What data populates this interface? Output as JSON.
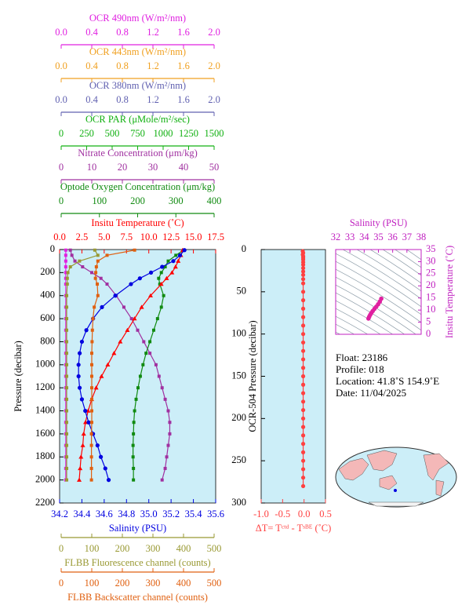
{
  "chart_data": [
    {
      "type": "profile",
      "ylabel": "Pressure (decibar)",
      "ylim": [
        0,
        2200
      ],
      "yinvert": true,
      "yticks": [
        0,
        200,
        400,
        600,
        800,
        1000,
        1200,
        1400,
        1600,
        1800,
        2000,
        2200
      ],
      "background": "#cceef8",
      "pressure": [
        5,
        50,
        100,
        150,
        200,
        250,
        300,
        400,
        500,
        600,
        700,
        800,
        900,
        1000,
        1100,
        1200,
        1300,
        1400,
        1500,
        1600,
        1700,
        1800,
        1900,
        2000
      ],
      "axes": [
        {
          "label": "OCR 490nm (W/m²/nm)",
          "color": "#e020e0",
          "side": "top",
          "marker": "square",
          "xlim": [
            0,
            2
          ],
          "xticks": [
            {
              "value": 0,
              "label": "0.0"
            },
            0.4,
            0.8,
            1.2,
            1.6,
            {
              "value": 2,
              "label": "2.0"
            }
          ],
          "values": [
            0.06,
            0.06,
            0.06,
            0.06,
            0.06,
            0.06,
            0.06,
            0.06,
            0.06,
            0.06,
            0.06,
            0.06,
            0.06,
            0.06,
            0.06,
            0.06,
            0.06,
            0.06,
            0.06,
            0.06,
            0.06,
            0.06,
            0.06,
            0.06
          ]
        },
        {
          "label": "OCR 443nm (W/m²/nm)",
          "color": "#f0a020",
          "side": "top",
          "xlim": [
            0,
            2
          ],
          "xticks": [
            {
              "value": 0,
              "label": "0.0"
            },
            0.4,
            0.8,
            1.2,
            1.6,
            {
              "value": 2,
              "label": "2.0"
            }
          ]
        },
        {
          "label": "OCR 380nm (W/m²/nm)",
          "color": "#6060b0",
          "side": "top",
          "xlim": [
            0,
            2
          ],
          "xticks": [
            {
              "value": 0,
              "label": "0.0"
            },
            0.4,
            0.8,
            1.2,
            1.6,
            {
              "value": 2,
              "label": "2.0"
            }
          ]
        },
        {
          "label": "OCR PAR (μMole/m²/sec)",
          "color": "#10b010",
          "side": "top",
          "xlim": [
            0,
            1500
          ],
          "xticks": [
            0,
            250,
            500,
            750,
            1000,
            1250,
            1500
          ]
        },
        {
          "label": "Nitrate Concentration (μm/kg)",
          "color": "#a030a0",
          "side": "top",
          "marker": "square",
          "xlim": [
            0,
            50
          ],
          "xticks": [
            0,
            10,
            20,
            30,
            40,
            50
          ],
          "values": [
            3,
            3.5,
            4.5,
            7,
            10,
            13,
            15,
            18,
            20.5,
            23,
            25,
            27,
            29,
            31,
            32,
            33,
            34,
            35,
            35.5,
            35.5,
            35,
            34.5,
            34,
            33
          ]
        },
        {
          "label": "Optode Oxygen Concentration (μm/kg)",
          "color": "#108a10",
          "side": "top",
          "marker": "square",
          "xlim": [
            0,
            400
          ],
          "xticks": [
            0,
            100,
            200,
            300,
            400
          ],
          "values": [
            320,
            300,
            280,
            272,
            262,
            255,
            258,
            268,
            262,
            252,
            242,
            232,
            222,
            214,
            207,
            201,
            196,
            192,
            190,
            189,
            188,
            188,
            189,
            189
          ]
        },
        {
          "label": "Insitu Temperature (˚C)",
          "color": "#ff0000",
          "side": "top",
          "marker": "triangle",
          "xlim": [
            0,
            17.5
          ],
          "xticks": [
            {
              "value": 0,
              "label": "0.0"
            },
            2.5,
            {
              "value": 5,
              "label": "5.0"
            },
            7.5,
            {
              "value": 10,
              "label": "10.0"
            },
            12.5,
            {
              "value": 15,
              "label": "15.0"
            },
            17.5
          ],
          "values": [
            13.8,
            13.6,
            13.3,
            13.0,
            12.6,
            12.0,
            11.4,
            10.2,
            9.2,
            8.4,
            7.6,
            6.8,
            6.1,
            5.4,
            4.7,
            4.1,
            3.6,
            3.2,
            2.9,
            2.7,
            2.6,
            2.4,
            2.3,
            2.2
          ]
        },
        {
          "label": "Salinity (PSU)",
          "color": "#0000e0",
          "side": "bottom",
          "marker": "circle",
          "xlim": [
            34.2,
            35.6
          ],
          "xticks": [
            34.2,
            34.4,
            34.6,
            34.8,
            {
              "value": 35,
              "label": "35.0"
            },
            35.2,
            35.4,
            35.6
          ],
          "values": [
            35.32,
            35.28,
            35.22,
            35.12,
            35.02,
            34.92,
            34.84,
            34.7,
            34.58,
            34.5,
            34.44,
            34.4,
            34.38,
            34.37,
            34.37,
            34.38,
            34.4,
            34.43,
            34.46,
            34.5,
            34.54,
            34.57,
            34.61,
            34.64
          ]
        },
        {
          "label": "FLBB Fluorescence channel (counts)",
          "color": "#999933",
          "side": "bottom",
          "marker": "square",
          "xlim": [
            0,
            500
          ],
          "xticks": [
            0,
            100,
            200,
            300,
            400,
            500
          ],
          "values": [
            110,
            120,
            60,
            30,
            22,
            20,
            20,
            18,
            18,
            18,
            18,
            18,
            18,
            18,
            18,
            18,
            18,
            18,
            18,
            18,
            18,
            18,
            18,
            18
          ]
        },
        {
          "label": "FLBB Backscatter channel (counts)",
          "color": "#e06010",
          "side": "bottom",
          "marker": "square",
          "xlim": [
            0,
            500
          ],
          "xticks": [
            0,
            100,
            200,
            300,
            400,
            500
          ],
          "values": [
            240,
            150,
            120,
            115,
            113,
            112,
            118,
            120,
            108,
            104,
            102,
            101,
            100,
            100,
            100,
            100,
            100,
            100,
            100,
            99,
            99,
            99,
            99,
            99
          ]
        }
      ]
    },
    {
      "type": "profile",
      "ylabel": "OCR-504 Pressure (decibar)",
      "ylim": [
        0,
        300
      ],
      "yinvert": true,
      "yticks": [
        0,
        50,
        100,
        150,
        200,
        250,
        300
      ],
      "background": "#cceef8",
      "pressure": [
        2,
        4,
        6,
        8,
        10,
        12,
        15,
        18,
        22,
        26,
        30,
        35,
        40,
        50,
        60,
        70,
        80,
        90,
        100,
        110,
        120,
        130,
        140,
        150,
        160,
        170,
        180,
        190,
        200,
        210,
        220,
        230,
        240,
        250,
        260,
        270,
        280
      ],
      "axes": [
        {
          "label": "ΔT= Tᶜᵗᵈ - Tˢᴮᴱ (˚C)",
          "color": "#ff4040",
          "side": "bottom",
          "marker": "circle",
          "xlim": [
            -1,
            0.5
          ],
          "xticks": [
            {
              "value": -1,
              "label": "-1.0"
            },
            -0.5,
            {
              "value": 0,
              "label": "0.0"
            },
            0.5
          ],
          "values": [
            -0.03,
            -0.02,
            -0.03,
            -0.02,
            -0.02,
            -0.02,
            -0.02,
            -0.02,
            -0.02,
            -0.02,
            -0.02,
            -0.02,
            -0.02,
            -0.02,
            -0.02,
            -0.02,
            -0.02,
            -0.02,
            -0.02,
            -0.02,
            -0.02,
            -0.02,
            -0.02,
            -0.02,
            -0.02,
            -0.02,
            -0.02,
            -0.02,
            -0.02,
            -0.02,
            -0.02,
            -0.02,
            -0.02,
            -0.02,
            -0.02,
            -0.02,
            -0.02
          ]
        }
      ]
    },
    {
      "type": "scatter",
      "xlabel": "Salinity (PSU)",
      "ylabel": "Insitu Temperature (˚C)",
      "color": "#e020a0",
      "axis_color": "#c020c0",
      "xlim": [
        32,
        38
      ],
      "xticks": [
        32,
        33,
        34,
        35,
        36,
        37,
        38
      ],
      "ylim": [
        0,
        35
      ],
      "yticks": [
        0,
        5,
        10,
        15,
        20,
        25,
        30,
        35
      ],
      "x": [
        34.3,
        34.35,
        34.42,
        34.5,
        34.6,
        34.72,
        34.85,
        34.98,
        35.1,
        35.2
      ],
      "values": [
        6.5,
        7.2,
        8.0,
        8.8,
        9.6,
        10.5,
        11.4,
        12.4,
        13.5,
        14.7
      ]
    }
  ],
  "info": {
    "float": "Float:  23186",
    "profile": "Profile:  018",
    "location": "Location:  41.8˚S  154.9˚E",
    "date": "Date:  11/04/2025"
  }
}
